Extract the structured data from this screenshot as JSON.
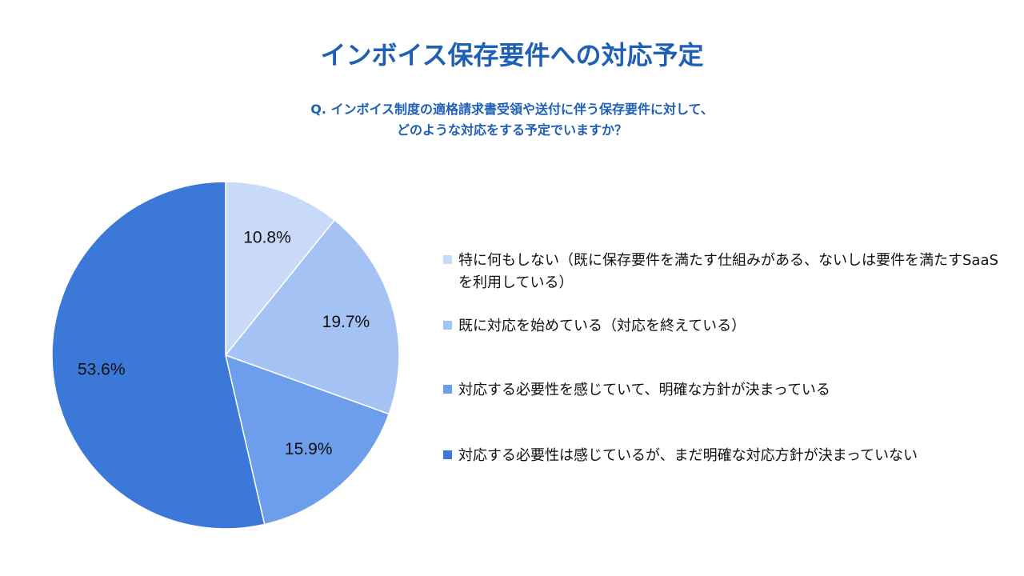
{
  "title": "インボイス保存要件への対応予定",
  "question": {
    "line1": "Q. インボイス制度の適格請求書受領や送付に伴う保存要件に対して、",
    "line2": "どのような対応をする予定でいますか？"
  },
  "chart_data": {
    "type": "pie",
    "title": "インボイス保存要件への対応予定",
    "legend_position": "right",
    "slices": [
      {
        "label": "特に何もしない（既に保存要件を満たす仕組みがある、ないしは要件を満たすSaaSを利用している）",
        "value": 10.8,
        "value_label": "10.8%",
        "color": "#c9daf8"
      },
      {
        "label": "既に対応を始めている（対応を終えている）",
        "value": 19.7,
        "value_label": "19.7%",
        "color": "#a4c2f4"
      },
      {
        "label": "対応する必要性を感じていて、明確な方針が決まっている",
        "value": 15.9,
        "value_label": "15.9%",
        "color": "#6d9eeb"
      },
      {
        "label": "対応する必要性は感じているが、まだ明確な対応方針が決まっていない",
        "value": 53.6,
        "value_label": "53.6%",
        "color": "#3c78d8"
      }
    ]
  }
}
